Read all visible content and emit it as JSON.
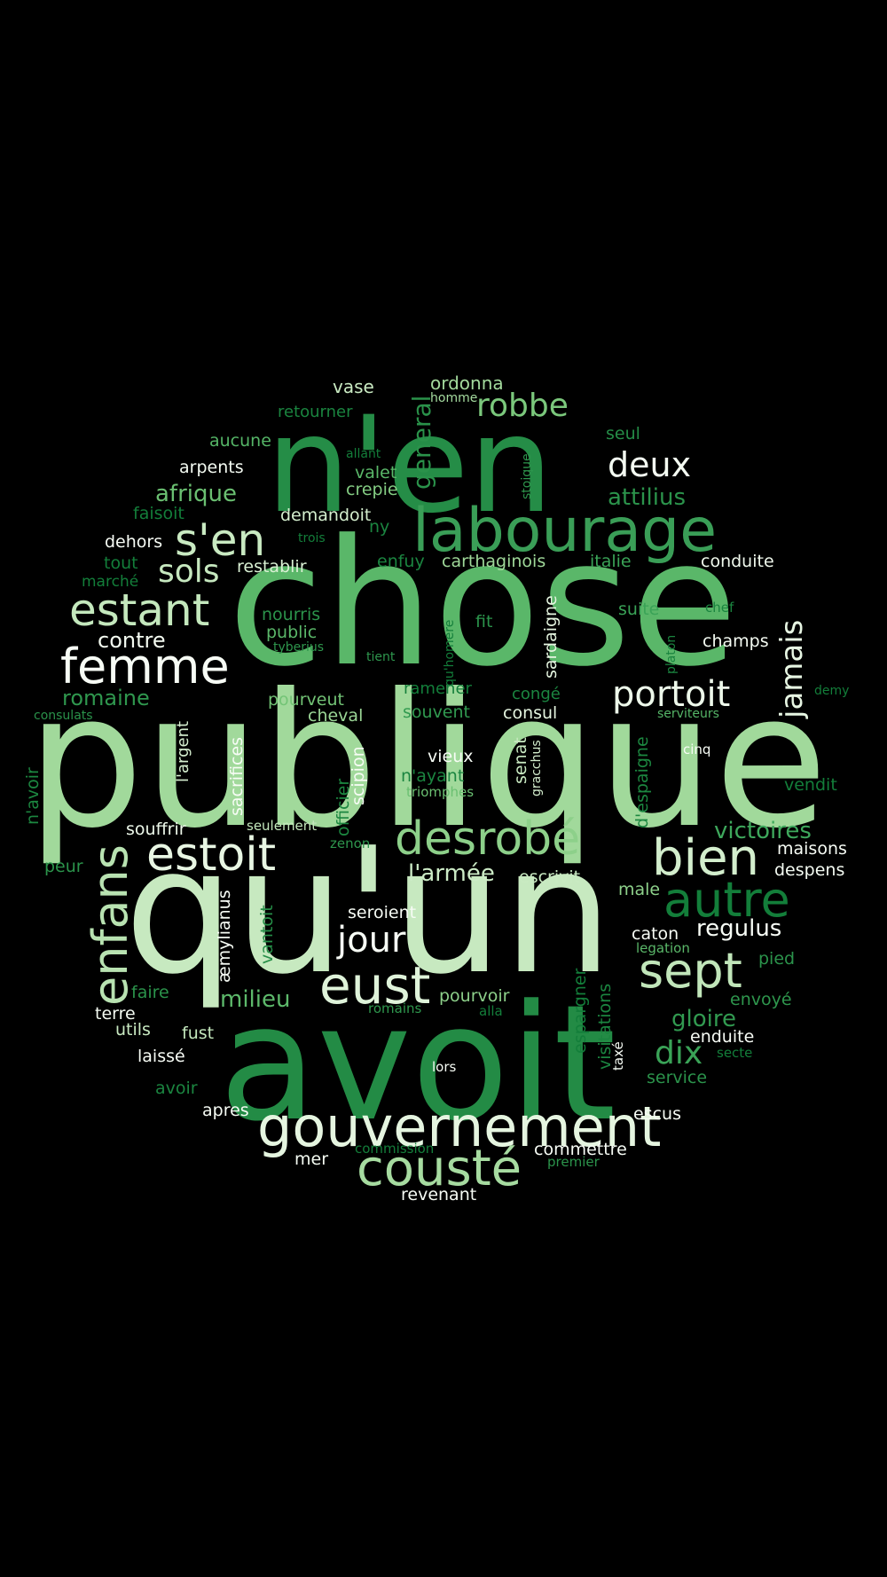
{
  "words": [
    {
      "text": "publique",
      "color": "#a1d99b"
    },
    {
      "text": "chose",
      "color": "#5ab769"
    },
    {
      "text": "qu'un",
      "color": "#c7e9c0"
    },
    {
      "text": "avoit",
      "color": "#238b45"
    },
    {
      "text": "n'en",
      "color": "#258d47"
    },
    {
      "text": "labourage",
      "color": "#3a9e57"
    },
    {
      "text": "gouvernement",
      "color": "#e5f5e0"
    },
    {
      "text": "cousté",
      "color": "#a6dba0"
    },
    {
      "text": "desrobé",
      "color": "#8dd08a"
    },
    {
      "text": "estoit",
      "color": "#e8f6e3"
    },
    {
      "text": "femme",
      "color": "#f7fcf5"
    },
    {
      "text": "enfans",
      "color": "#b8e2b1"
    },
    {
      "text": "eust",
      "color": "#dff3da"
    },
    {
      "text": "bien",
      "color": "#d3eecd"
    },
    {
      "text": "sept",
      "color": "#c1e6ba"
    },
    {
      "text": "autre",
      "color": "#137e3a"
    },
    {
      "text": "estant",
      "color": "#c4e8bd"
    },
    {
      "text": "s'en",
      "color": "#c9eac2"
    },
    {
      "text": "portoit",
      "color": "#edf8ea"
    },
    {
      "text": "deux",
      "color": "#f4fbf2"
    },
    {
      "text": "jour",
      "color": "#f7fcf5"
    },
    {
      "text": "robbe",
      "color": "#7bc87c"
    },
    {
      "text": "sols",
      "color": "#c6e8bf"
    },
    {
      "text": "dix",
      "color": "#3aa357"
    },
    {
      "text": "jamais",
      "color": "#e7f6e3"
    },
    {
      "text": "general",
      "color": "#2a924a"
    },
    {
      "text": "milieu",
      "color": "#5db96b"
    },
    {
      "text": "afrique",
      "color": "#6abf71"
    },
    {
      "text": "attilius",
      "color": "#2b934b"
    },
    {
      "text": "victoires",
      "color": "#3ea85c"
    },
    {
      "text": "regulus",
      "color": "#f7fcf5"
    },
    {
      "text": "gloire",
      "color": "#319a50"
    },
    {
      "text": "romaine",
      "color": "#2f974e"
    },
    {
      "text": "contre",
      "color": "#f4fbf1"
    },
    {
      "text": "l'armée",
      "color": "#ccebc6"
    },
    {
      "text": "ordonna",
      "color": "#a3da9d"
    },
    {
      "text": "vase",
      "color": "#c9eac2"
    },
    {
      "text": "retourner",
      "color": "#1a843f"
    },
    {
      "text": "homme",
      "color": "#a5db9f"
    },
    {
      "text": "aucune",
      "color": "#55b567"
    },
    {
      "text": "seul",
      "color": "#258d47"
    },
    {
      "text": "arpents",
      "color": "#f4fbf2"
    },
    {
      "text": "allant",
      "color": "#137e3a"
    },
    {
      "text": "valet",
      "color": "#5ab769"
    },
    {
      "text": "crepie",
      "color": "#84cc83"
    },
    {
      "text": "stoique",
      "color": "#2e964d"
    },
    {
      "text": "faisoit",
      "color": "#137e3a"
    },
    {
      "text": "demandoit",
      "color": "#d4eece"
    },
    {
      "text": "ny",
      "color": "#1b8540"
    },
    {
      "text": "dehors",
      "color": "#f7fcf5"
    },
    {
      "text": "tout",
      "color": "#137e3a"
    },
    {
      "text": "restablir",
      "color": "#d9f0d3"
    },
    {
      "text": "enfuy",
      "color": "#1b8540"
    },
    {
      "text": "carthaginois",
      "color": "#9fd899"
    },
    {
      "text": "italie",
      "color": "#3aa357"
    },
    {
      "text": "conduite",
      "color": "#f0f9ed"
    },
    {
      "text": "marché",
      "color": "#137e3a"
    },
    {
      "text": "trois",
      "color": "#137e3a"
    },
    {
      "text": "sardaigne",
      "color": "#e5f5e0"
    },
    {
      "text": "suite",
      "color": "#3aa357"
    },
    {
      "text": "chef",
      "color": "#1a843f"
    },
    {
      "text": "nourris",
      "color": "#2b934b"
    },
    {
      "text": "public",
      "color": "#5ab769"
    },
    {
      "text": "tyberius",
      "color": "#2e964d"
    },
    {
      "text": "fit",
      "color": "#2b934b"
    },
    {
      "text": "qu'homere",
      "color": "#137e3a"
    },
    {
      "text": "tient",
      "color": "#2e964d"
    },
    {
      "text": "platon",
      "color": "#1a843f"
    },
    {
      "text": "champs",
      "color": "#f4fbf2"
    },
    {
      "text": "demy",
      "color": "#137e3a"
    },
    {
      "text": "pourveut",
      "color": "#73c476"
    },
    {
      "text": "ramener",
      "color": "#137e3a"
    },
    {
      "text": "congé",
      "color": "#1b8540"
    },
    {
      "text": "consulats",
      "color": "#2a924a"
    },
    {
      "text": "l'argent",
      "color": "#d6efd0"
    },
    {
      "text": "cheval",
      "color": "#9bd696"
    },
    {
      "text": "souvent",
      "color": "#319a50"
    },
    {
      "text": "consul",
      "color": "#e5f5e0"
    },
    {
      "text": "serviteurs",
      "color": "#55b567"
    },
    {
      "text": "sacrifices",
      "color": "#f7fcf5"
    },
    {
      "text": "scipion",
      "color": "#f7fcf5"
    },
    {
      "text": "vieux",
      "color": "#f7fcf5"
    },
    {
      "text": "senat",
      "color": "#c9eac2"
    },
    {
      "text": "gracchus",
      "color": "#d4eece"
    },
    {
      "text": "d'espaigne",
      "color": "#1c8740"
    },
    {
      "text": "cinq",
      "color": "#f7fcf5"
    },
    {
      "text": "n'avoir",
      "color": "#1c8740"
    },
    {
      "text": "officier",
      "color": "#1c8740"
    },
    {
      "text": "n'ayant",
      "color": "#1b8540"
    },
    {
      "text": "triomphes",
      "color": "#6abf71"
    },
    {
      "text": "vendit",
      "color": "#137e3a"
    },
    {
      "text": "souffrir",
      "color": "#edf8ea"
    },
    {
      "text": "seulement",
      "color": "#c4e8bd"
    },
    {
      "text": "zenon",
      "color": "#2e964d"
    },
    {
      "text": "maisons",
      "color": "#f7fcf5"
    },
    {
      "text": "despens",
      "color": "#f4fbf2"
    },
    {
      "text": "peur",
      "color": "#2b934b"
    },
    {
      "text": "escrivit",
      "color": "#c9eac2"
    },
    {
      "text": "male",
      "color": "#8dd08a"
    },
    {
      "text": "æmylianus",
      "color": "#f7fcf5"
    },
    {
      "text": "vantoit",
      "color": "#258d47"
    },
    {
      "text": "seroient",
      "color": "#f7fcf5"
    },
    {
      "text": "caton",
      "color": "#f7fcf5"
    },
    {
      "text": "legation",
      "color": "#5ab769"
    },
    {
      "text": "pied",
      "color": "#2b934b"
    },
    {
      "text": "faire",
      "color": "#2b934b"
    },
    {
      "text": "terre",
      "color": "#f4fbf2"
    },
    {
      "text": "pourvoir",
      "color": "#8dd08a"
    },
    {
      "text": "romains",
      "color": "#2e964d"
    },
    {
      "text": "alla",
      "color": "#137e3a"
    },
    {
      "text": "espargner",
      "color": "#137e3a"
    },
    {
      "text": "visitations",
      "color": "#1b8540"
    },
    {
      "text": "envoyé",
      "color": "#2e964d"
    },
    {
      "text": "utils",
      "color": "#c9eac2"
    },
    {
      "text": "fust",
      "color": "#c4e8bd"
    },
    {
      "text": "enduite",
      "color": "#f7fcf5"
    },
    {
      "text": "laissé",
      "color": "#f7fcf5"
    },
    {
      "text": "taxé",
      "color": "#f7fcf5"
    },
    {
      "text": "secte",
      "color": "#137e3a"
    },
    {
      "text": "lors",
      "color": "#f7fcf5"
    },
    {
      "text": "avoir",
      "color": "#1b8540"
    },
    {
      "text": "service",
      "color": "#2b934b"
    },
    {
      "text": "apres",
      "color": "#f7fcf5"
    },
    {
      "text": "escus",
      "color": "#f7fcf5"
    },
    {
      "text": "commission",
      "color": "#137e3a"
    },
    {
      "text": "commettre",
      "color": "#f7fcf5"
    },
    {
      "text": "mer",
      "color": "#f4fbf2"
    },
    {
      "text": "premier",
      "color": "#2b934b"
    },
    {
      "text": "revenant",
      "color": "#f7fcf5"
    }
  ]
}
